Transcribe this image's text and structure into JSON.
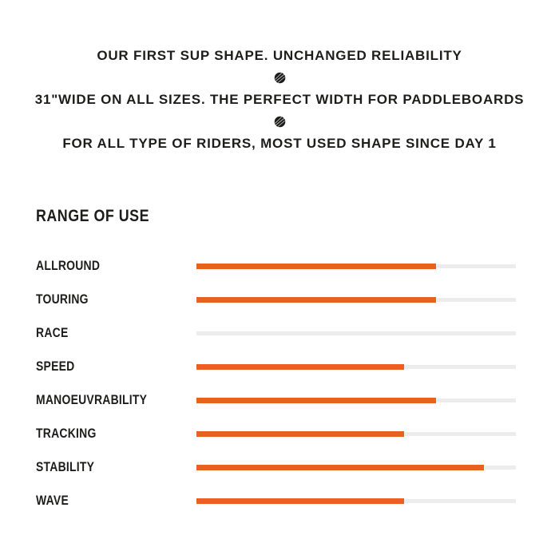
{
  "header": {
    "lines": [
      "OUR FIRST SUP SHAPE. UNCHANGED RELIABILITY",
      "31\"WIDE ON ALL SIZES. THE PERFECT WIDTH FOR PADDLEBOARDS",
      "FOR ALL TYPE OF RIDERS, MOST USED SHAPE SINCE DAY 1"
    ],
    "separator_icon": "scribble-dot"
  },
  "section": {
    "title": "RANGE OF USE"
  },
  "chart_data": {
    "type": "bar",
    "orientation": "horizontal",
    "title": "RANGE OF USE",
    "categories": [
      "ALLROUND",
      "TOURING",
      "RACE",
      "SPEED",
      "MANOEUVRABILITY",
      "TRACKING",
      "STABILITY",
      "WAVE"
    ],
    "values_percent": [
      75,
      75,
      0,
      65,
      75,
      65,
      90,
      65
    ],
    "scale": [
      0,
      100
    ],
    "axis_labels": "none",
    "grid": false,
    "legend": "none",
    "bar_color": "#E8611E",
    "track_color": "#ECECEC"
  },
  "colors": {
    "accent": "#E8611E",
    "track": "#ECECEC",
    "ink": "#1D1D1B",
    "bg": "#FFFFFF"
  }
}
